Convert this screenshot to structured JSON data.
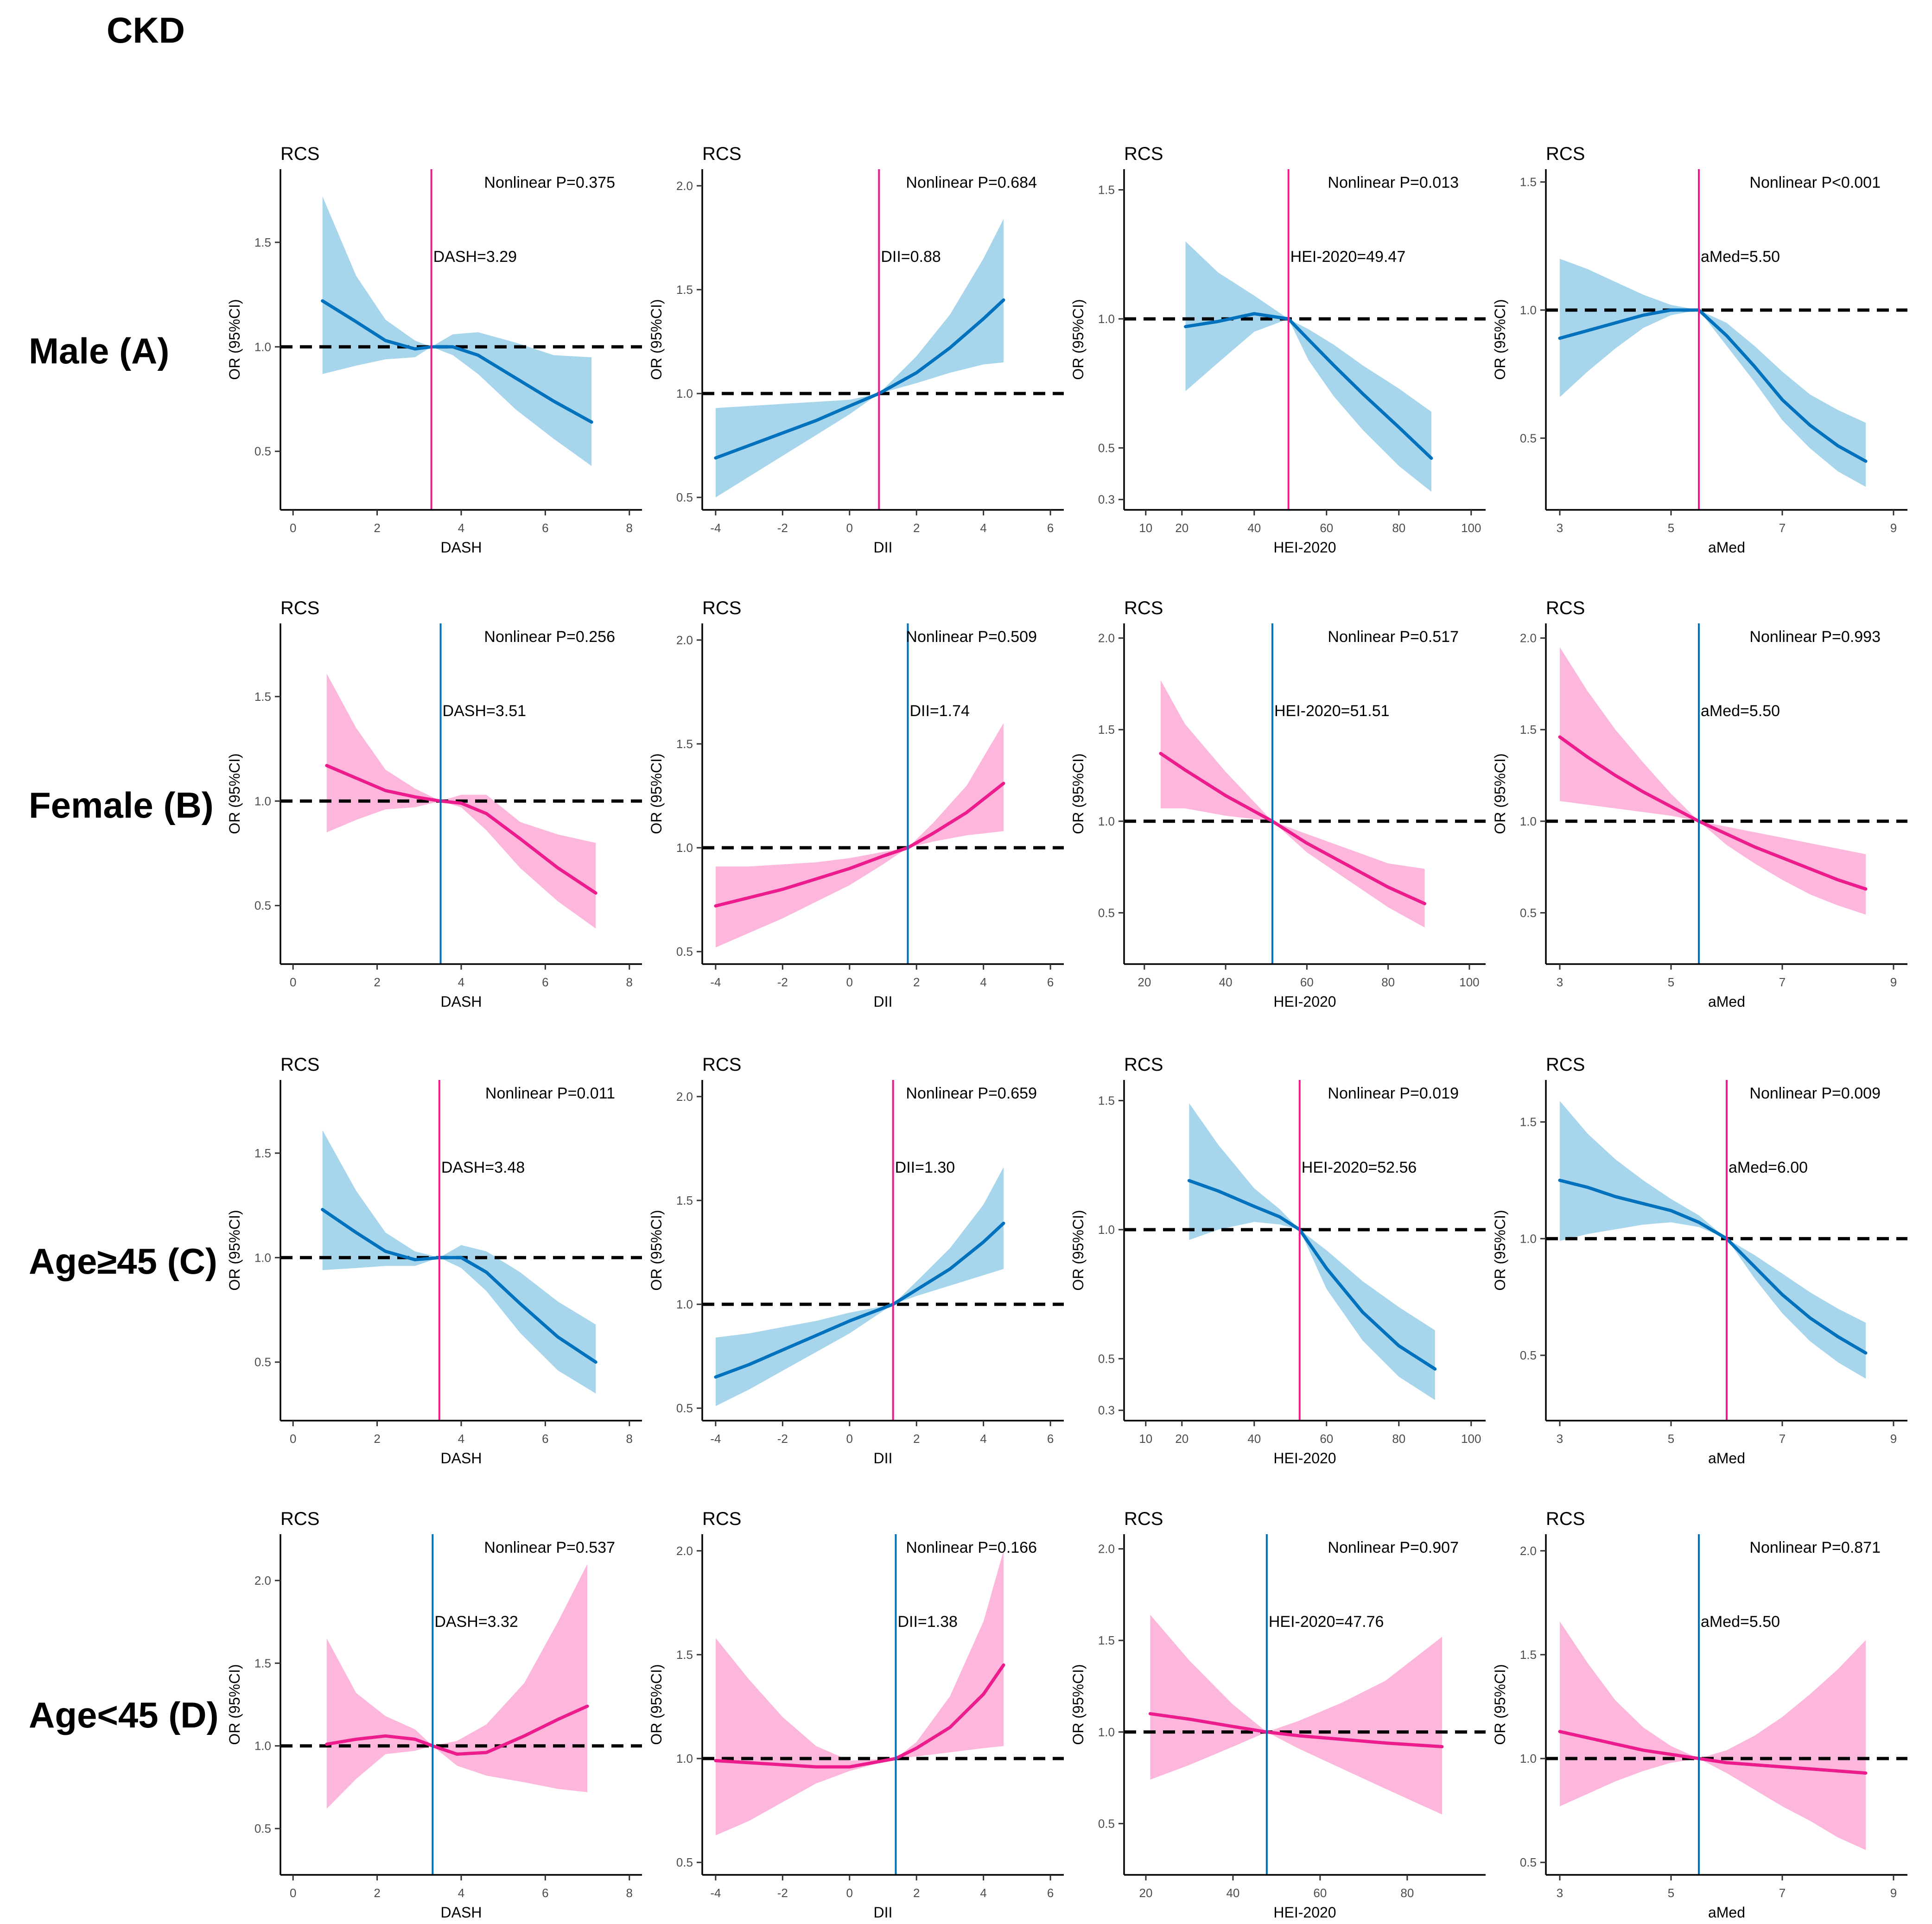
{
  "title": "CKD",
  "colors": {
    "blue_line": "#0072BD",
    "blue_band": "#A6D5EC",
    "pink_line": "#EC1C8C",
    "pink_band": "#FDB7DC",
    "ref_line": "#000000"
  },
  "rows": [
    {
      "label": "Male (A)"
    },
    {
      "label": "Female (B)"
    },
    {
      "label": "Age≥45 (C)"
    },
    {
      "label": "Age<45 (D)"
    }
  ],
  "chart_data": [
    {
      "row": 0,
      "col": 0,
      "type": "line",
      "title": "RCS",
      "xlabel": "DASH",
      "ylabel": "OR (95%CI)",
      "xlim": [
        -0.3,
        8.3
      ],
      "ylim": [
        0.22,
        1.85
      ],
      "xticks": [
        0,
        2,
        4,
        6,
        8
      ],
      "yticks": [
        0.5,
        1.0,
        1.5
      ],
      "scheme": "blue",
      "ref_value": 3.29,
      "ref_label": "DASH=3.29",
      "p_label": "Nonlinear P=0.375",
      "x": [
        0.7,
        1.5,
        2.2,
        2.9,
        3.29,
        3.8,
        4.4,
        5.3,
        6.2,
        7.1
      ],
      "or": [
        1.22,
        1.12,
        1.03,
        0.99,
        1.0,
        1.0,
        0.96,
        0.85,
        0.74,
        0.64
      ],
      "lo": [
        0.87,
        0.91,
        0.94,
        0.95,
        1.0,
        0.96,
        0.87,
        0.7,
        0.56,
        0.43
      ],
      "hi": [
        1.72,
        1.34,
        1.13,
        1.03,
        1.0,
        1.06,
        1.07,
        1.02,
        0.96,
        0.95
      ]
    },
    {
      "row": 0,
      "col": 1,
      "type": "line",
      "title": "RCS",
      "xlabel": "DII",
      "ylabel": "OR (95%CI)",
      "xlim": [
        -4.4,
        6.4
      ],
      "ylim": [
        0.44,
        2.08
      ],
      "xticks": [
        -4,
        -2,
        0,
        2,
        4,
        6
      ],
      "yticks": [
        0.5,
        1.0,
        1.5,
        2.0
      ],
      "scheme": "blue",
      "ref_value": 0.88,
      "ref_label": "DII=0.88",
      "p_label": "Nonlinear P=0.684",
      "x": [
        -4,
        -3,
        -2,
        -1,
        0,
        0.88,
        2,
        3,
        4,
        4.6
      ],
      "or": [
        0.69,
        0.75,
        0.81,
        0.87,
        0.94,
        1.0,
        1.1,
        1.22,
        1.36,
        1.45
      ],
      "lo": [
        0.5,
        0.6,
        0.7,
        0.8,
        0.9,
        1.0,
        1.05,
        1.1,
        1.14,
        1.15
      ],
      "hi": [
        0.93,
        0.94,
        0.95,
        0.96,
        0.97,
        1.0,
        1.18,
        1.38,
        1.65,
        1.84
      ]
    },
    {
      "row": 0,
      "col": 2,
      "type": "line",
      "title": "RCS",
      "xlabel": "HEI-2020",
      "ylabel": "OR (95%CI)",
      "xlim": [
        4,
        104
      ],
      "ylim": [
        0.26,
        1.58
      ],
      "xticks": [
        10,
        20,
        40,
        60,
        80,
        100
      ],
      "yticks": [
        0.3,
        0.5,
        1.0,
        1.5
      ],
      "scheme": "blue",
      "ref_value": 49.47,
      "ref_label": "HEI-2020=49.47",
      "p_label": "Nonlinear P=0.013",
      "x": [
        21,
        30,
        40,
        49.47,
        55,
        62,
        70,
        80,
        89
      ],
      "or": [
        0.97,
        0.99,
        1.02,
        1.0,
        0.92,
        0.82,
        0.71,
        0.58,
        0.46
      ],
      "lo": [
        0.72,
        0.83,
        0.95,
        1.0,
        0.84,
        0.7,
        0.57,
        0.43,
        0.33
      ],
      "hi": [
        1.3,
        1.18,
        1.09,
        1.0,
        0.96,
        0.9,
        0.82,
        0.73,
        0.64
      ]
    },
    {
      "row": 0,
      "col": 3,
      "type": "line",
      "title": "RCS",
      "xlabel": "aMed",
      "ylabel": "OR (95%CI)",
      "xlim": [
        2.75,
        9.25
      ],
      "ylim": [
        0.22,
        1.55
      ],
      "xticks": [
        3,
        5,
        7,
        9
      ],
      "yticks": [
        0.5,
        1.0,
        1.5
      ],
      "scheme": "blue",
      "ref_value": 5.5,
      "ref_label": "aMed=5.50",
      "p_label": "Nonlinear P<0.001",
      "x": [
        3,
        3.5,
        4,
        4.5,
        5,
        5.5,
        6,
        6.5,
        7,
        7.5,
        8,
        8.5
      ],
      "or": [
        0.89,
        0.92,
        0.95,
        0.98,
        1.0,
        1.0,
        0.9,
        0.78,
        0.65,
        0.55,
        0.47,
        0.41
      ],
      "lo": [
        0.66,
        0.76,
        0.85,
        0.93,
        0.98,
        1.0,
        0.86,
        0.72,
        0.57,
        0.46,
        0.37,
        0.31
      ],
      "hi": [
        1.2,
        1.16,
        1.11,
        1.06,
        1.02,
        1.0,
        0.95,
        0.86,
        0.76,
        0.67,
        0.61,
        0.56
      ]
    },
    {
      "row": 1,
      "col": 0,
      "type": "line",
      "title": "RCS",
      "xlabel": "DASH",
      "ylabel": "OR (95%CI)",
      "xlim": [
        -0.3,
        8.3
      ],
      "ylim": [
        0.22,
        1.85
      ],
      "xticks": [
        0,
        2,
        4,
        6,
        8
      ],
      "yticks": [
        0.5,
        1.0,
        1.5
      ],
      "scheme": "pink",
      "ref_value": 3.51,
      "ref_label": "DASH=3.51",
      "p_label": "Nonlinear P=0.256",
      "x": [
        0.8,
        1.5,
        2.2,
        2.9,
        3.51,
        4,
        4.6,
        5.4,
        6.3,
        7.2
      ],
      "or": [
        1.17,
        1.11,
        1.05,
        1.02,
        1.0,
        0.99,
        0.94,
        0.82,
        0.68,
        0.56
      ],
      "lo": [
        0.85,
        0.91,
        0.96,
        0.97,
        1.0,
        0.97,
        0.86,
        0.68,
        0.52,
        0.39
      ],
      "hi": [
        1.61,
        1.35,
        1.15,
        1.06,
        1.0,
        1.03,
        1.03,
        0.9,
        0.84,
        0.8
      ]
    },
    {
      "row": 1,
      "col": 1,
      "type": "line",
      "title": "RCS",
      "xlabel": "DII",
      "ylabel": "OR (95%CI)",
      "xlim": [
        -4.4,
        6.4
      ],
      "ylim": [
        0.44,
        2.08
      ],
      "xticks": [
        -4,
        -2,
        0,
        2,
        4,
        6
      ],
      "yticks": [
        0.5,
        1.0,
        1.5,
        2.0
      ],
      "scheme": "pink",
      "ref_value": 1.74,
      "ref_label": "DII=1.74",
      "p_label": "Nonlinear P=0.509",
      "x": [
        -4,
        -3,
        -2,
        -1,
        0,
        1,
        1.74,
        2.5,
        3.5,
        4.6
      ],
      "or": [
        0.72,
        0.76,
        0.8,
        0.85,
        0.9,
        0.96,
        1.0,
        1.07,
        1.17,
        1.31
      ],
      "lo": [
        0.52,
        0.59,
        0.66,
        0.74,
        0.82,
        0.92,
        1.0,
        1.03,
        1.06,
        1.08
      ],
      "hi": [
        0.91,
        0.91,
        0.92,
        0.93,
        0.95,
        0.98,
        1.0,
        1.12,
        1.3,
        1.6
      ]
    },
    {
      "row": 1,
      "col": 2,
      "type": "line",
      "title": "RCS",
      "xlabel": "HEI-2020",
      "ylabel": "OR (95%CI)",
      "xlim": [
        15,
        104
      ],
      "ylim": [
        0.22,
        2.08
      ],
      "xticks": [
        20,
        40,
        60,
        80,
        100
      ],
      "yticks": [
        0.5,
        1.0,
        1.5,
        2.0
      ],
      "scheme": "pink",
      "ref_value": 51.51,
      "ref_label": "HEI-2020=51.51",
      "p_label": "Nonlinear P=0.517",
      "x": [
        24,
        30,
        40,
        51.51,
        60,
        70,
        80,
        89
      ],
      "or": [
        1.37,
        1.28,
        1.14,
        1.0,
        0.88,
        0.76,
        0.64,
        0.55
      ],
      "lo": [
        1.07,
        1.07,
        1.03,
        1.0,
        0.83,
        0.68,
        0.53,
        0.42
      ],
      "hi": [
        1.77,
        1.53,
        1.27,
        1.0,
        0.93,
        0.85,
        0.77,
        0.74
      ]
    },
    {
      "row": 1,
      "col": 3,
      "type": "line",
      "title": "RCS",
      "xlabel": "aMed",
      "ylabel": "OR (95%CI)",
      "xlim": [
        2.75,
        9.25
      ],
      "ylim": [
        0.22,
        2.08
      ],
      "xticks": [
        3,
        5,
        7,
        9
      ],
      "yticks": [
        0.5,
        1.0,
        1.5,
        2.0
      ],
      "scheme": "pink",
      "ref_value": 5.5,
      "ref_label": "aMed=5.50",
      "p_label": "Nonlinear P=0.993",
      "x": [
        3,
        3.5,
        4,
        4.5,
        5,
        5.5,
        6,
        6.5,
        7,
        7.5,
        8,
        8.5
      ],
      "or": [
        1.46,
        1.35,
        1.25,
        1.16,
        1.08,
        1.0,
        0.93,
        0.86,
        0.8,
        0.74,
        0.68,
        0.63
      ],
      "lo": [
        1.11,
        1.09,
        1.07,
        1.05,
        1.03,
        1.0,
        0.87,
        0.77,
        0.68,
        0.6,
        0.54,
        0.49
      ],
      "hi": [
        1.95,
        1.71,
        1.5,
        1.32,
        1.15,
        1.0,
        0.97,
        0.94,
        0.91,
        0.88,
        0.85,
        0.82
      ]
    },
    {
      "row": 2,
      "col": 0,
      "type": "line",
      "title": "RCS",
      "xlabel": "DASH",
      "ylabel": "OR (95%CI)",
      "xlim": [
        -0.3,
        8.3
      ],
      "ylim": [
        0.22,
        1.85
      ],
      "xticks": [
        0,
        2,
        4,
        6,
        8
      ],
      "yticks": [
        0.5,
        1.0,
        1.5
      ],
      "scheme": "blue",
      "ref_value": 3.48,
      "ref_label": "DASH=3.48",
      "p_label": "Nonlinear P=0.011",
      "x": [
        0.7,
        1.5,
        2.2,
        2.9,
        3.48,
        4,
        4.6,
        5.4,
        6.3,
        7.2
      ],
      "or": [
        1.23,
        1.12,
        1.03,
        0.99,
        1.0,
        1.0,
        0.93,
        0.78,
        0.62,
        0.5
      ],
      "lo": [
        0.94,
        0.95,
        0.96,
        0.96,
        1.0,
        0.95,
        0.84,
        0.64,
        0.46,
        0.35
      ],
      "hi": [
        1.61,
        1.32,
        1.12,
        1.03,
        1.0,
        1.06,
        1.03,
        0.93,
        0.79,
        0.68
      ]
    },
    {
      "row": 2,
      "col": 1,
      "type": "line",
      "title": "RCS",
      "xlabel": "DII",
      "ylabel": "OR (95%CI)",
      "xlim": [
        -4.4,
        6.4
      ],
      "ylim": [
        0.44,
        2.08
      ],
      "xticks": [
        -4,
        -2,
        0,
        2,
        4,
        6
      ],
      "yticks": [
        0.5,
        1.0,
        1.5,
        2.0
      ],
      "scheme": "blue",
      "ref_value": 1.3,
      "ref_label": "DII=1.30",
      "p_label": "Nonlinear P=0.659",
      "x": [
        -4,
        -3,
        -2,
        -1,
        0,
        1.3,
        2,
        3,
        4,
        4.6
      ],
      "or": [
        0.65,
        0.71,
        0.78,
        0.85,
        0.92,
        1.0,
        1.07,
        1.17,
        1.3,
        1.39
      ],
      "lo": [
        0.51,
        0.59,
        0.68,
        0.77,
        0.86,
        1.0,
        1.04,
        1.09,
        1.14,
        1.17
      ],
      "hi": [
        0.84,
        0.86,
        0.89,
        0.92,
        0.96,
        1.0,
        1.11,
        1.27,
        1.48,
        1.66
      ]
    },
    {
      "row": 2,
      "col": 2,
      "type": "line",
      "title": "RCS",
      "xlabel": "HEI-2020",
      "ylabel": "OR (95%CI)",
      "xlim": [
        4,
        104
      ],
      "ylim": [
        0.26,
        1.58
      ],
      "xticks": [
        10,
        20,
        40,
        60,
        80,
        100
      ],
      "yticks": [
        0.3,
        0.5,
        1.0,
        1.5
      ],
      "scheme": "blue",
      "ref_value": 52.56,
      "ref_label": "HEI-2020=52.56",
      "p_label": "Nonlinear P=0.019",
      "x": [
        22,
        30,
        40,
        47,
        52.56,
        60,
        70,
        80,
        90
      ],
      "or": [
        1.19,
        1.15,
        1.09,
        1.05,
        1.0,
        0.85,
        0.68,
        0.55,
        0.46
      ],
      "lo": [
        0.96,
        1.0,
        1.03,
        1.02,
        1.0,
        0.77,
        0.57,
        0.43,
        0.34
      ],
      "hi": [
        1.49,
        1.33,
        1.16,
        1.08,
        1.0,
        0.92,
        0.8,
        0.7,
        0.61
      ]
    },
    {
      "row": 2,
      "col": 3,
      "type": "line",
      "title": "RCS",
      "xlabel": "aMed",
      "ylabel": "OR (95%CI)",
      "xlim": [
        2.75,
        9.25
      ],
      "ylim": [
        0.22,
        1.68
      ],
      "xticks": [
        3,
        5,
        7,
        9
      ],
      "yticks": [
        0.5,
        1.0,
        1.5
      ],
      "scheme": "blue",
      "ref_value": 6.0,
      "ref_label": "aMed=6.00",
      "p_label": "Nonlinear P=0.009",
      "x": [
        3,
        3.5,
        4,
        4.5,
        5,
        5.5,
        6,
        6.5,
        7,
        7.5,
        8,
        8.5
      ],
      "or": [
        1.25,
        1.22,
        1.18,
        1.15,
        1.12,
        1.07,
        1.0,
        0.88,
        0.76,
        0.66,
        0.58,
        0.51
      ],
      "lo": [
        0.99,
        1.02,
        1.04,
        1.06,
        1.07,
        1.05,
        1.0,
        0.83,
        0.68,
        0.56,
        0.47,
        0.4
      ],
      "hi": [
        1.59,
        1.45,
        1.34,
        1.25,
        1.17,
        1.1,
        1.0,
        0.93,
        0.85,
        0.77,
        0.7,
        0.64
      ]
    },
    {
      "row": 3,
      "col": 0,
      "type": "line",
      "title": "RCS",
      "xlabel": "DASH",
      "ylabel": "OR (95%CI)",
      "xlim": [
        -0.3,
        8.3
      ],
      "ylim": [
        0.22,
        2.28
      ],
      "xticks": [
        0,
        2,
        4,
        6,
        8
      ],
      "yticks": [
        0.5,
        1.0,
        1.5,
        2.0
      ],
      "scheme": "pink",
      "ref_value": 3.32,
      "ref_label": "DASH=3.32",
      "p_label": "Nonlinear P=0.537",
      "x": [
        0.8,
        1.5,
        2.2,
        2.9,
        3.32,
        3.9,
        4.6,
        5.5,
        6.3,
        7
      ],
      "or": [
        1.01,
        1.04,
        1.06,
        1.04,
        1.0,
        0.95,
        0.96,
        1.06,
        1.16,
        1.24
      ],
      "lo": [
        0.62,
        0.8,
        0.95,
        0.97,
        1.0,
        0.88,
        0.82,
        0.78,
        0.74,
        0.72
      ],
      "hi": [
        1.65,
        1.32,
        1.18,
        1.1,
        1.0,
        1.03,
        1.13,
        1.38,
        1.75,
        2.1
      ]
    },
    {
      "row": 3,
      "col": 1,
      "type": "line",
      "title": "RCS",
      "xlabel": "DII",
      "ylabel": "OR (95%CI)",
      "xlim": [
        -4.4,
        6.4
      ],
      "ylim": [
        0.44,
        2.08
      ],
      "xticks": [
        -4,
        -2,
        0,
        2,
        4,
        6
      ],
      "yticks": [
        0.5,
        1.0,
        1.5,
        2.0
      ],
      "scheme": "pink",
      "ref_value": 1.38,
      "ref_label": "DII=1.38",
      "p_label": "Nonlinear P=0.166",
      "x": [
        -4,
        -3,
        -2,
        -1,
        0,
        1.38,
        2,
        3,
        4,
        4.6
      ],
      "or": [
        0.99,
        0.98,
        0.97,
        0.96,
        0.96,
        1.0,
        1.05,
        1.15,
        1.31,
        1.45
      ],
      "lo": [
        0.63,
        0.7,
        0.79,
        0.88,
        0.94,
        1.0,
        1.01,
        1.03,
        1.05,
        1.06
      ],
      "hi": [
        1.58,
        1.38,
        1.2,
        1.06,
        0.99,
        1.0,
        1.08,
        1.3,
        1.66,
        2.0
      ]
    },
    {
      "row": 3,
      "col": 2,
      "type": "line",
      "title": "RCS",
      "xlabel": "HEI-2020",
      "ylabel": "OR (95%CI)",
      "xlim": [
        15,
        98
      ],
      "ylim": [
        0.22,
        2.08
      ],
      "xticks": [
        20,
        40,
        60,
        80
      ],
      "yticks": [
        0.5,
        1.0,
        1.5,
        2.0
      ],
      "scheme": "pink",
      "ref_value": 47.76,
      "ref_label": "HEI-2020=47.76",
      "p_label": "Nonlinear P=0.907",
      "x": [
        21,
        30,
        40,
        47.76,
        55,
        65,
        75,
        88
      ],
      "or": [
        1.1,
        1.07,
        1.03,
        1.0,
        0.98,
        0.96,
        0.94,
        0.92
      ],
      "lo": [
        0.74,
        0.82,
        0.92,
        1.0,
        0.91,
        0.8,
        0.69,
        0.55
      ],
      "hi": [
        1.64,
        1.39,
        1.15,
        1.0,
        1.06,
        1.16,
        1.28,
        1.52
      ]
    },
    {
      "row": 3,
      "col": 3,
      "type": "line",
      "title": "RCS",
      "xlabel": "aMed",
      "ylabel": "OR (95%CI)",
      "xlim": [
        2.75,
        9.25
      ],
      "ylim": [
        0.44,
        2.08
      ],
      "xticks": [
        3,
        5,
        7,
        9
      ],
      "yticks": [
        0.5,
        1.0,
        1.5,
        2.0
      ],
      "scheme": "pink",
      "ref_value": 5.5,
      "ref_label": "aMed=5.50",
      "p_label": "Nonlinear P=0.871",
      "x": [
        3,
        3.5,
        4,
        4.5,
        5,
        5.5,
        6,
        6.5,
        7,
        7.5,
        8,
        8.5
      ],
      "or": [
        1.13,
        1.1,
        1.07,
        1.04,
        1.02,
        1.0,
        0.98,
        0.97,
        0.96,
        0.95,
        0.94,
        0.93
      ],
      "lo": [
        0.77,
        0.83,
        0.89,
        0.94,
        0.98,
        1.0,
        0.93,
        0.85,
        0.77,
        0.7,
        0.62,
        0.56
      ],
      "hi": [
        1.66,
        1.46,
        1.28,
        1.15,
        1.06,
        1.0,
        1.04,
        1.11,
        1.2,
        1.31,
        1.43,
        1.57
      ]
    }
  ]
}
